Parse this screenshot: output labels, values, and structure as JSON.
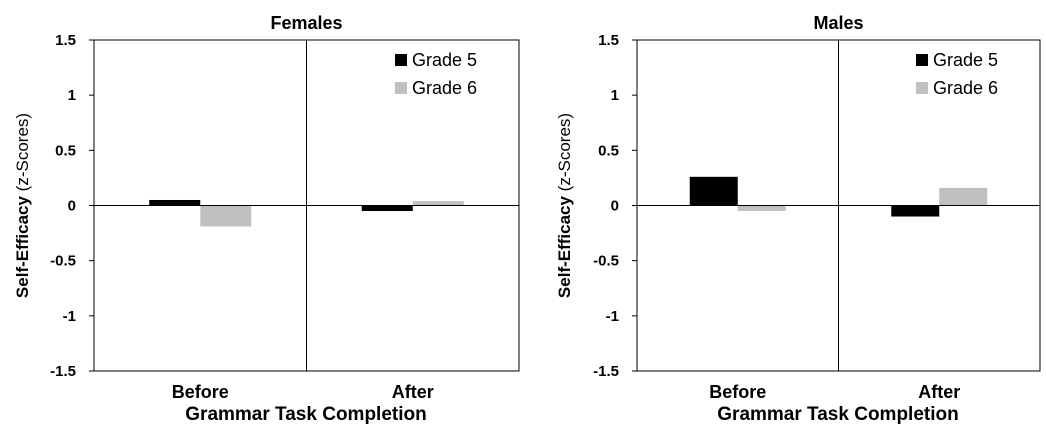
{
  "chart_data": [
    {
      "type": "bar",
      "title": "Females",
      "categories": [
        "Before",
        "After"
      ],
      "series": [
        {
          "name": "Grade 5",
          "color": "#000000",
          "values": [
            0.05,
            -0.05
          ]
        },
        {
          "name": "Grade 6",
          "color": "#c0c0c0",
          "values": [
            -0.19,
            0.04
          ]
        }
      ],
      "xlabel": "Grammar Task Completion",
      "ylabel_bold": "Self-Efficacy",
      "ylabel_normal": "(z-Scores)",
      "ylim": [
        -1.5,
        1.5
      ],
      "yticks": [
        "1.5",
        "1",
        "0.5",
        "0",
        "-0.5",
        "-1",
        "-1.5"
      ],
      "legend_position": "top-right",
      "grid": false
    },
    {
      "type": "bar",
      "title": "Males",
      "categories": [
        "Before",
        "After"
      ],
      "series": [
        {
          "name": "Grade 5",
          "color": "#000000",
          "values": [
            0.26,
            -0.1
          ]
        },
        {
          "name": "Grade 6",
          "color": "#c0c0c0",
          "values": [
            -0.05,
            0.16
          ]
        }
      ],
      "xlabel": "Grammar Task Completion",
      "ylabel_bold": "Self-Efficacy",
      "ylabel_normal": "(z-Scores)",
      "ylim": [
        -1.5,
        1.5
      ],
      "yticks": [
        "1.5",
        "1",
        "0.5",
        "0",
        "-0.5",
        "-1",
        "-1.5"
      ],
      "legend_position": "top-right",
      "grid": false
    }
  ]
}
